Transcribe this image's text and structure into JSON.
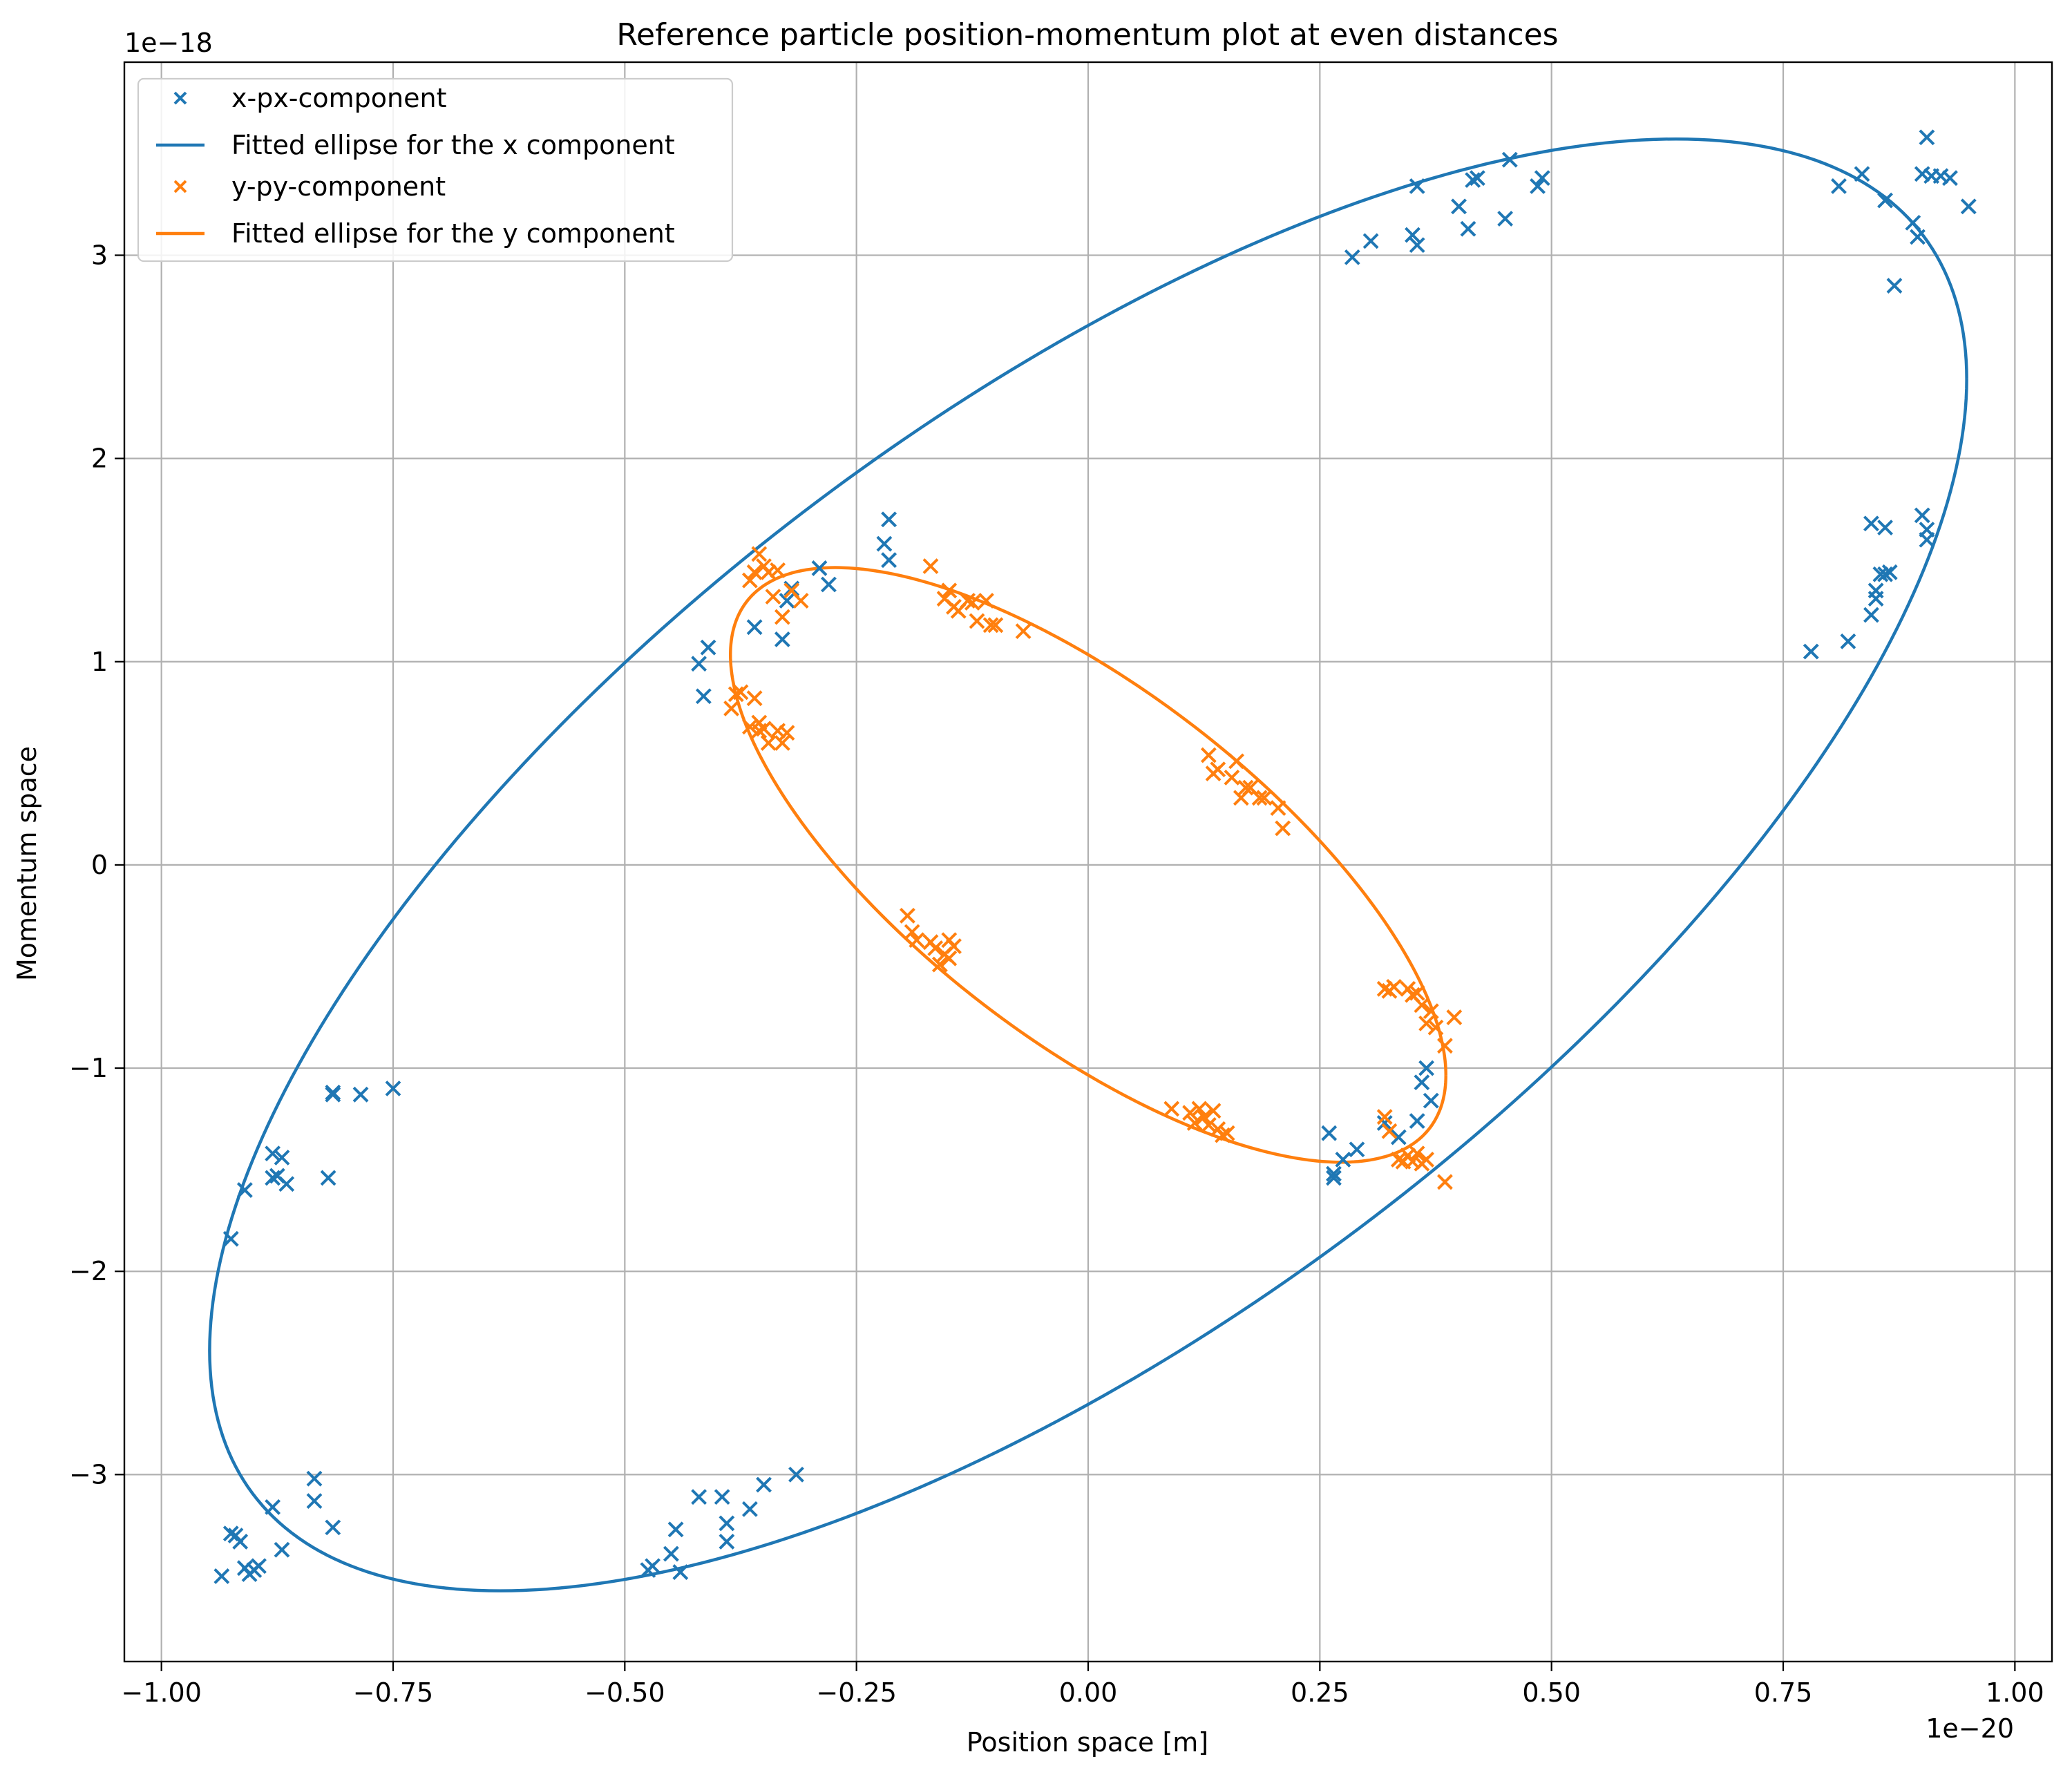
{
  "chart_data": {
    "type": "scatter",
    "title": "Reference particle position-momentum plot at even distances",
    "xlabel": "Position space [m]",
    "ylabel": "Momentum space",
    "x_offset_label": "1e−20",
    "y_offset_label": "1e−18",
    "xlim": [
      -1.04,
      1.04
    ],
    "ylim": [
      -3.92,
      3.95
    ],
    "x_ticks": [
      -1.0,
      -0.75,
      -0.5,
      -0.25,
      0.0,
      0.25,
      0.5,
      0.75,
      1.0
    ],
    "x_tick_labels": [
      "−1.00",
      "−0.75",
      "−0.50",
      "−0.25",
      "0.00",
      "0.25",
      "0.50",
      "0.75",
      "1.00"
    ],
    "y_ticks": [
      -3,
      -2,
      -1,
      0,
      1,
      2,
      3
    ],
    "y_tick_labels": [
      "−3",
      "−2",
      "−1",
      "0",
      "1",
      "2",
      "3"
    ],
    "grid": true,
    "legend_position": "top-left",
    "colors": {
      "x": "#1f77b4",
      "y": "#ff7f0e"
    },
    "series": [
      {
        "name": "x-px-component",
        "kind": "scatter",
        "marker": "x",
        "color": "#1f77b4",
        "points": [
          [
            -0.935,
            -3.5
          ],
          [
            -0.92,
            -3.3
          ],
          [
            -0.925,
            -3.29
          ],
          [
            -0.915,
            -3.33
          ],
          [
            -0.91,
            -3.46
          ],
          [
            -0.905,
            -3.49
          ],
          [
            -0.9,
            -3.47
          ],
          [
            -0.895,
            -3.45
          ],
          [
            -0.88,
            -3.16
          ],
          [
            -0.87,
            -3.37
          ],
          [
            -0.835,
            -3.13
          ],
          [
            -0.835,
            -3.02
          ],
          [
            -0.815,
            -3.26
          ],
          [
            -0.925,
            -1.84
          ],
          [
            -0.91,
            -1.6
          ],
          [
            -0.88,
            -1.54
          ],
          [
            -0.875,
            -1.53
          ],
          [
            -0.88,
            -1.42
          ],
          [
            -0.87,
            -1.44
          ],
          [
            -0.865,
            -1.57
          ],
          [
            -0.82,
            -1.54
          ],
          [
            -0.815,
            -1.13
          ],
          [
            -0.815,
            -1.12
          ],
          [
            -0.785,
            -1.13
          ],
          [
            -0.75,
            -1.1
          ],
          [
            -0.475,
            -3.47
          ],
          [
            -0.47,
            -3.45
          ],
          [
            -0.45,
            -3.39
          ],
          [
            -0.445,
            -3.27
          ],
          [
            -0.44,
            -3.48
          ],
          [
            -0.42,
            -3.11
          ],
          [
            -0.395,
            -3.11
          ],
          [
            -0.39,
            -3.24
          ],
          [
            -0.39,
            -3.33
          ],
          [
            -0.365,
            -3.17
          ],
          [
            -0.35,
            -3.05
          ],
          [
            -0.315,
            -3.0
          ],
          [
            -0.42,
            0.99
          ],
          [
            -0.415,
            0.83
          ],
          [
            -0.41,
            1.07
          ],
          [
            -0.36,
            1.17
          ],
          [
            -0.33,
            1.11
          ],
          [
            -0.325,
            1.3
          ],
          [
            -0.32,
            1.36
          ],
          [
            -0.29,
            1.46
          ],
          [
            -0.28,
            1.38
          ],
          [
            -0.22,
            1.58
          ],
          [
            -0.215,
            1.7
          ],
          [
            -0.215,
            1.5
          ],
          [
            0.285,
            2.99
          ],
          [
            0.305,
            3.07
          ],
          [
            0.35,
            3.1
          ],
          [
            0.355,
            3.05
          ],
          [
            0.355,
            3.34
          ],
          [
            0.4,
            3.24
          ],
          [
            0.41,
            3.13
          ],
          [
            0.415,
            3.37
          ],
          [
            0.42,
            3.38
          ],
          [
            0.45,
            3.18
          ],
          [
            0.455,
            3.47
          ],
          [
            0.485,
            3.34
          ],
          [
            0.49,
            3.38
          ],
          [
            0.78,
            1.05
          ],
          [
            0.82,
            1.1
          ],
          [
            0.845,
            1.23
          ],
          [
            0.85,
            1.31
          ],
          [
            0.85,
            1.35
          ],
          [
            0.855,
            1.43
          ],
          [
            0.86,
            1.66
          ],
          [
            0.845,
            1.68
          ],
          [
            0.86,
            1.43
          ],
          [
            0.865,
            1.44
          ],
          [
            0.905,
            1.6
          ],
          [
            0.9,
            1.72
          ],
          [
            0.905,
            1.65
          ],
          [
            0.81,
            3.34
          ],
          [
            0.835,
            3.4
          ],
          [
            0.86,
            3.27
          ],
          [
            0.87,
            2.85
          ],
          [
            0.89,
            3.16
          ],
          [
            0.895,
            3.09
          ],
          [
            0.9,
            3.4
          ],
          [
            0.905,
            3.58
          ],
          [
            0.91,
            3.39
          ],
          [
            0.92,
            3.39
          ],
          [
            0.93,
            3.38
          ],
          [
            0.95,
            3.24
          ],
          [
            0.26,
            -1.32
          ],
          [
            0.265,
            -1.52
          ],
          [
            0.265,
            -1.54
          ],
          [
            0.275,
            -1.45
          ],
          [
            0.29,
            -1.4
          ],
          [
            0.32,
            -1.27
          ],
          [
            0.335,
            -1.34
          ],
          [
            0.355,
            -1.26
          ],
          [
            0.36,
            -1.07
          ],
          [
            0.365,
            -1.0
          ],
          [
            0.37,
            -1.16
          ]
        ]
      },
      {
        "name": "Fitted ellipse for the x component",
        "kind": "ellipse",
        "color": "#1f77b4",
        "ellipse": {
          "kind": "rotated",
          "cx": 0.0,
          "cy": 0.0,
          "ax": 0.948,
          "ay": 3.572,
          "phase_deg": 48.0
        }
      },
      {
        "name": "y-py-component",
        "kind": "scatter",
        "marker": "x",
        "color": "#ff7f0e",
        "points": [
          [
            -0.38,
            0.84
          ],
          [
            -0.385,
            0.77
          ],
          [
            -0.375,
            0.85
          ],
          [
            -0.36,
            0.82
          ],
          [
            -0.365,
            0.68
          ],
          [
            -0.355,
            0.66
          ],
          [
            -0.35,
            0.67
          ],
          [
            -0.345,
            0.6
          ],
          [
            -0.335,
            0.66
          ],
          [
            -0.33,
            0.6
          ],
          [
            -0.325,
            0.65
          ],
          [
            -0.355,
            0.7
          ],
          [
            -0.365,
            1.4
          ],
          [
            -0.36,
            1.44
          ],
          [
            -0.355,
            1.53
          ],
          [
            -0.35,
            1.47
          ],
          [
            -0.345,
            1.44
          ],
          [
            -0.34,
            1.32
          ],
          [
            -0.335,
            1.45
          ],
          [
            -0.33,
            1.22
          ],
          [
            -0.32,
            1.35
          ],
          [
            -0.31,
            1.3
          ],
          [
            -0.17,
            1.47
          ],
          [
            -0.155,
            1.31
          ],
          [
            -0.15,
            1.35
          ],
          [
            -0.145,
            1.27
          ],
          [
            -0.14,
            1.25
          ],
          [
            -0.13,
            1.3
          ],
          [
            -0.125,
            1.29
          ],
          [
            -0.12,
            1.2
          ],
          [
            -0.11,
            1.3
          ],
          [
            -0.105,
            1.18
          ],
          [
            -0.1,
            1.18
          ],
          [
            -0.07,
            1.15
          ],
          [
            0.13,
            0.54
          ],
          [
            0.135,
            0.45
          ],
          [
            0.14,
            0.47
          ],
          [
            0.155,
            0.43
          ],
          [
            0.16,
            0.51
          ],
          [
            0.165,
            0.33
          ],
          [
            0.17,
            0.38
          ],
          [
            0.175,
            0.38
          ],
          [
            0.185,
            0.33
          ],
          [
            0.19,
            0.33
          ],
          [
            0.205,
            0.28
          ],
          [
            0.21,
            0.18
          ],
          [
            -0.195,
            -0.25
          ],
          [
            -0.19,
            -0.33
          ],
          [
            -0.185,
            -0.37
          ],
          [
            -0.17,
            -0.38
          ],
          [
            -0.165,
            -0.41
          ],
          [
            -0.16,
            -0.49
          ],
          [
            -0.155,
            -0.44
          ],
          [
            -0.15,
            -0.46
          ],
          [
            -0.15,
            -0.37
          ],
          [
            -0.145,
            -0.4
          ],
          [
            0.09,
            -1.2
          ],
          [
            0.11,
            -1.22
          ],
          [
            0.115,
            -1.27
          ],
          [
            0.12,
            -1.2
          ],
          [
            0.125,
            -1.24
          ],
          [
            0.13,
            -1.28
          ],
          [
            0.135,
            -1.21
          ],
          [
            0.14,
            -1.3
          ],
          [
            0.145,
            -1.33
          ],
          [
            0.15,
            -1.32
          ],
          [
            0.32,
            -0.61
          ],
          [
            0.325,
            -0.62
          ],
          [
            0.33,
            -0.6
          ],
          [
            0.345,
            -0.61
          ],
          [
            0.35,
            -0.64
          ],
          [
            0.355,
            -0.63
          ],
          [
            0.36,
            -0.69
          ],
          [
            0.365,
            -0.78
          ],
          [
            0.37,
            -0.72
          ],
          [
            0.375,
            -0.8
          ],
          [
            0.385,
            -0.89
          ],
          [
            0.395,
            -0.75
          ],
          [
            0.32,
            -1.24
          ],
          [
            0.325,
            -1.31
          ],
          [
            0.335,
            -1.45
          ],
          [
            0.34,
            -1.46
          ],
          [
            0.345,
            -1.43
          ],
          [
            0.35,
            -1.46
          ],
          [
            0.355,
            -1.42
          ],
          [
            0.36,
            -1.47
          ],
          [
            0.365,
            -1.45
          ],
          [
            0.385,
            -1.56
          ]
        ]
      },
      {
        "name": "Fitted ellipse for the y component",
        "kind": "ellipse",
        "color": "#ff7f0e",
        "ellipse": {
          "kind": "rotated",
          "cx": 0.0,
          "cy": 0.0,
          "ax": 0.386,
          "ay": 1.463,
          "phase_deg": -135.0
        }
      }
    ]
  }
}
